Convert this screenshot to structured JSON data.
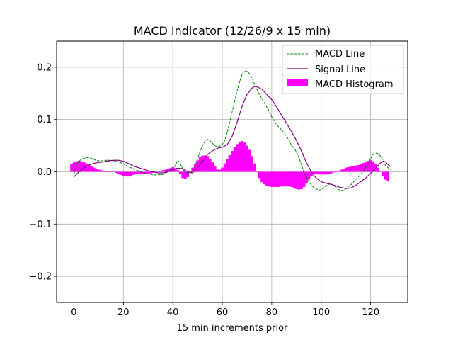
{
  "chart_data": {
    "type": "line",
    "title": "MACD Indicator (12/26/9 x 15 min)",
    "xlabel": "15 min increments prior",
    "ylabel": "",
    "xlim": [
      -7,
      135
    ],
    "ylim": [
      -0.25,
      0.25
    ],
    "xticks": [
      0,
      20,
      40,
      60,
      80,
      100,
      120
    ],
    "xtick_labels": [
      "0",
      "20",
      "40",
      "60",
      "80",
      "100",
      "120"
    ],
    "yticks": [
      -0.2,
      -0.1,
      0.0,
      0.1,
      0.2
    ],
    "ytick_labels": [
      "−0.2",
      "−0.1",
      "0.0",
      "0.1",
      "0.2"
    ],
    "grid": true,
    "legend_position": "top-right",
    "legend": [
      "MACD Line",
      "Signal Line",
      "MACD Histogram"
    ],
    "colors": {
      "macd": "#008000",
      "signal": "#800080",
      "histogram": "#ff00ff",
      "grid": "#b0b0b0"
    },
    "series": [
      {
        "name": "MACD Line",
        "style": "dashed",
        "points": [
          [
            0,
            -0.005
          ],
          [
            1,
            0.012
          ],
          [
            2,
            0.02
          ],
          [
            3,
            0.024
          ],
          [
            4,
            0.026
          ],
          [
            5,
            0.027
          ],
          [
            6,
            0.027
          ],
          [
            7,
            0.026
          ],
          [
            8,
            0.024
          ],
          [
            9,
            0.022
          ],
          [
            10,
            0.021
          ],
          [
            11,
            0.021
          ],
          [
            12,
            0.021
          ],
          [
            13,
            0.022
          ],
          [
            14,
            0.022
          ],
          [
            15,
            0.022
          ],
          [
            16,
            0.021
          ],
          [
            17,
            0.02
          ],
          [
            18,
            0.019
          ],
          [
            19,
            0.017
          ],
          [
            20,
            0.015
          ],
          [
            22,
            0.01
          ],
          [
            24,
            0.006
          ],
          [
            26,
            0.002
          ],
          [
            28,
            -0.002
          ],
          [
            30,
            -0.004
          ],
          [
            32,
            -0.006
          ],
          [
            34,
            -0.006
          ],
          [
            36,
            -0.005
          ],
          [
            38,
            0.0
          ],
          [
            40,
            0.006
          ],
          [
            41,
            0.012
          ],
          [
            42,
            0.022
          ],
          [
            43,
            0.016
          ],
          [
            44,
            0.005
          ],
          [
            45,
            0.0
          ],
          [
            46,
            -0.003
          ],
          [
            47,
            -0.003
          ],
          [
            48,
            0.002
          ],
          [
            49,
            0.01
          ],
          [
            50,
            0.025
          ],
          [
            51,
            0.038
          ],
          [
            52,
            0.05
          ],
          [
            53,
            0.058
          ],
          [
            54,
            0.062
          ],
          [
            55,
            0.06
          ],
          [
            56,
            0.055
          ],
          [
            57,
            0.05
          ],
          [
            58,
            0.048
          ],
          [
            59,
            0.049
          ],
          [
            60,
            0.052
          ],
          [
            61,
            0.06
          ],
          [
            62,
            0.075
          ],
          [
            63,
            0.095
          ],
          [
            64,
            0.115
          ],
          [
            65,
            0.135
          ],
          [
            66,
            0.155
          ],
          [
            67,
            0.172
          ],
          [
            68,
            0.186
          ],
          [
            69,
            0.193
          ],
          [
            70,
            0.192
          ],
          [
            71,
            0.188
          ],
          [
            72,
            0.18
          ],
          [
            73,
            0.168
          ],
          [
            74,
            0.158
          ],
          [
            75,
            0.149
          ],
          [
            76,
            0.14
          ],
          [
            77,
            0.132
          ],
          [
            78,
            0.124
          ],
          [
            79,
            0.116
          ],
          [
            80,
            0.105
          ],
          [
            81,
            0.097
          ],
          [
            82,
            0.09
          ],
          [
            83,
            0.085
          ],
          [
            84,
            0.08
          ],
          [
            85,
            0.074
          ],
          [
            86,
            0.068
          ],
          [
            87,
            0.06
          ],
          [
            88,
            0.051
          ],
          [
            89,
            0.046
          ],
          [
            90,
            0.038
          ],
          [
            91,
            0.027
          ],
          [
            92,
            0.014
          ],
          [
            93,
            0.0
          ],
          [
            94,
            -0.01
          ],
          [
            95,
            -0.019
          ],
          [
            96,
            -0.025
          ],
          [
            97,
            -0.03
          ],
          [
            98,
            -0.033
          ],
          [
            99,
            -0.035
          ],
          [
            100,
            -0.034
          ],
          [
            101,
            -0.031
          ],
          [
            102,
            -0.027
          ],
          [
            103,
            -0.024
          ],
          [
            104,
            -0.023
          ],
          [
            105,
            -0.026
          ],
          [
            106,
            -0.03
          ],
          [
            107,
            -0.034
          ],
          [
            108,
            -0.036
          ],
          [
            109,
            -0.035
          ],
          [
            110,
            -0.032
          ],
          [
            112,
            -0.025
          ],
          [
            114,
            -0.015
          ],
          [
            116,
            -0.005
          ],
          [
            118,
            0.008
          ],
          [
            120,
            0.025
          ],
          [
            121,
            0.033
          ],
          [
            122,
            0.036
          ],
          [
            123,
            0.035
          ],
          [
            124,
            0.03
          ],
          [
            125,
            0.022
          ],
          [
            126,
            0.012
          ],
          [
            127,
            0.008
          ],
          [
            128,
            0.004
          ]
        ]
      },
      {
        "name": "Signal Line",
        "style": "solid",
        "points": [
          [
            0,
            -0.01
          ],
          [
            2,
            0.0
          ],
          [
            4,
            0.008
          ],
          [
            6,
            0.013
          ],
          [
            8,
            0.016
          ],
          [
            10,
            0.018
          ],
          [
            12,
            0.019
          ],
          [
            14,
            0.021
          ],
          [
            16,
            0.022
          ],
          [
            18,
            0.022
          ],
          [
            20,
            0.02
          ],
          [
            22,
            0.016
          ],
          [
            24,
            0.011
          ],
          [
            26,
            0.008
          ],
          [
            28,
            0.005
          ],
          [
            30,
            0.002
          ],
          [
            32,
            0.0
          ],
          [
            34,
            -0.002
          ],
          [
            36,
            -0.002
          ],
          [
            38,
            0.0
          ],
          [
            40,
            0.004
          ],
          [
            42,
            0.007
          ],
          [
            44,
            0.006
          ],
          [
            46,
            0.0
          ],
          [
            48,
            -0.002
          ],
          [
            50,
            0.008
          ],
          [
            52,
            0.02
          ],
          [
            54,
            0.033
          ],
          [
            56,
            0.04
          ],
          [
            58,
            0.045
          ],
          [
            60,
            0.047
          ],
          [
            62,
            0.052
          ],
          [
            64,
            0.068
          ],
          [
            66,
            0.095
          ],
          [
            68,
            0.125
          ],
          [
            70,
            0.148
          ],
          [
            72,
            0.16
          ],
          [
            73,
            0.163
          ],
          [
            74,
            0.163
          ],
          [
            76,
            0.158
          ],
          [
            78,
            0.148
          ],
          [
            80,
            0.138
          ],
          [
            82,
            0.124
          ],
          [
            84,
            0.108
          ],
          [
            86,
            0.093
          ],
          [
            88,
            0.077
          ],
          [
            90,
            0.06
          ],
          [
            92,
            0.04
          ],
          [
            94,
            0.018
          ],
          [
            96,
            0.0
          ],
          [
            98,
            -0.012
          ],
          [
            100,
            -0.019
          ],
          [
            102,
            -0.022
          ],
          [
            104,
            -0.024
          ],
          [
            106,
            -0.027
          ],
          [
            108,
            -0.03
          ],
          [
            110,
            -0.032
          ],
          [
            112,
            -0.031
          ],
          [
            114,
            -0.026
          ],
          [
            116,
            -0.019
          ],
          [
            118,
            -0.012
          ],
          [
            120,
            -0.003
          ],
          [
            122,
            0.007
          ],
          [
            124,
            0.017
          ],
          [
            125,
            0.02
          ],
          [
            126,
            0.019
          ],
          [
            127,
            0.014
          ],
          [
            128,
            0.01
          ]
        ]
      },
      {
        "name": "MACD Histogram",
        "style": "bar",
        "x": [
          -1,
          0,
          1,
          2,
          3,
          4,
          5,
          6,
          7,
          8,
          9,
          10,
          11,
          12,
          13,
          14,
          15,
          16,
          17,
          18,
          19,
          20,
          21,
          22,
          23,
          24,
          25,
          26,
          27,
          28,
          29,
          30,
          31,
          32,
          33,
          34,
          35,
          36,
          37,
          38,
          39,
          40,
          41,
          42,
          43,
          44,
          45,
          46,
          47,
          48,
          49,
          50,
          51,
          52,
          53,
          54,
          55,
          56,
          57,
          58,
          59,
          60,
          61,
          62,
          63,
          64,
          65,
          66,
          67,
          68,
          69,
          70,
          71,
          72,
          73,
          74,
          75,
          76,
          77,
          78,
          79,
          80,
          81,
          82,
          83,
          84,
          85,
          86,
          87,
          88,
          89,
          90,
          91,
          92,
          93,
          94,
          95,
          96,
          97,
          98,
          99,
          100,
          101,
          102,
          103,
          104,
          105,
          106,
          107,
          108,
          109,
          110,
          111,
          112,
          113,
          114,
          115,
          116,
          117,
          118,
          119,
          120,
          121,
          122,
          123,
          124,
          125,
          126,
          127
        ],
        "values": [
          0.015,
          0.018,
          0.02,
          0.021,
          0.02,
          0.018,
          0.016,
          0.013,
          0.01,
          0.008,
          0.006,
          0.004,
          0.003,
          0.002,
          0.001,
          0.0,
          0.0,
          0.0,
          -0.002,
          -0.004,
          -0.006,
          -0.008,
          -0.009,
          -0.009,
          -0.008,
          -0.006,
          -0.005,
          -0.004,
          -0.004,
          -0.004,
          -0.004,
          -0.004,
          -0.003,
          -0.002,
          -0.001,
          0.0,
          0.002,
          0.003,
          0.004,
          0.006,
          0.007,
          0.009,
          0.007,
          0.003,
          -0.005,
          -0.012,
          -0.014,
          -0.01,
          0.0,
          0.008,
          0.015,
          0.022,
          0.028,
          0.031,
          0.031,
          0.03,
          0.025,
          0.018,
          0.01,
          0.004,
          0.004,
          0.008,
          0.016,
          0.024,
          0.032,
          0.04,
          0.047,
          0.053,
          0.057,
          0.059,
          0.056,
          0.05,
          0.042,
          0.03,
          0.016,
          0.0,
          -0.012,
          -0.02,
          -0.024,
          -0.027,
          -0.028,
          -0.029,
          -0.029,
          -0.029,
          -0.029,
          -0.028,
          -0.028,
          -0.028,
          -0.028,
          -0.029,
          -0.031,
          -0.033,
          -0.034,
          -0.033,
          -0.029,
          -0.022,
          -0.015,
          -0.008,
          -0.004,
          -0.004,
          -0.005,
          -0.005,
          -0.005,
          -0.005,
          -0.004,
          -0.003,
          -0.001,
          0.0,
          0.002,
          0.004,
          0.006,
          0.008,
          0.009,
          0.01,
          0.011,
          0.012,
          0.013,
          0.015,
          0.017,
          0.019,
          0.021,
          0.022,
          0.02,
          0.015,
          0.008,
          0.001,
          -0.009,
          -0.015,
          -0.017
        ]
      }
    ]
  }
}
